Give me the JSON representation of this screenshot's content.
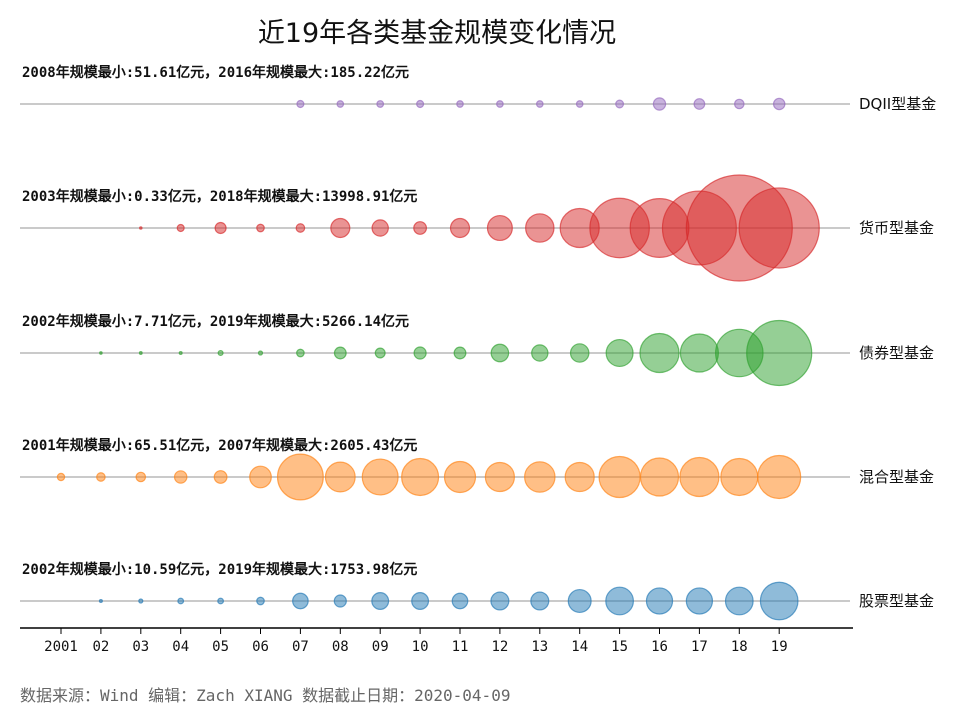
{
  "chart_data": {
    "type": "scatter",
    "title": "近19年各类基金规模变化情况",
    "x_tick_labels": [
      "2001",
      "02",
      "03",
      "04",
      "05",
      "06",
      "07",
      "08",
      "09",
      "10",
      "11",
      "12",
      "13",
      "14",
      "15",
      "16",
      "17",
      "18",
      "19"
    ],
    "x": [
      2001,
      2002,
      2003,
      2004,
      2005,
      2006,
      2007,
      2008,
      2009,
      2010,
      2011,
      2012,
      2013,
      2014,
      2015,
      2016,
      2017,
      2018,
      2019
    ],
    "size_unit": "亿元",
    "grid": false,
    "series": [
      {
        "name": "DQII型基金",
        "color": "#9467bd",
        "annotation": "2008年规模最小:51.61亿元，2016年规模最大:185.22亿元",
        "values": [
          null,
          null,
          null,
          null,
          null,
          null,
          60,
          51.61,
          55,
          60,
          52,
          53,
          52,
          52,
          75,
          185.22,
          140,
          110,
          160
        ]
      },
      {
        "name": "货币型基金",
        "color": "#d62728",
        "annotation": "2003年规模最小:0.33亿元，2018年规模最大:13998.91亿元",
        "values": [
          null,
          null,
          0.33,
          60,
          150,
          70,
          90,
          450,
          330,
          200,
          450,
          770,
          1000,
          1900,
          4400,
          4300,
          6800,
          13998.91,
          8000
        ]
      },
      {
        "name": "债券型基金",
        "color": "#2ca02c",
        "annotation": "2002年规模最小:7.71亿元，2019年规模最大:5266.14亿元",
        "values": [
          null,
          7.71,
          9,
          10,
          30,
          20,
          70,
          170,
          120,
          180,
          170,
          380,
          330,
          420,
          900,
          1900,
          1800,
          2800,
          5266.14
        ]
      },
      {
        "name": "混合型基金",
        "color": "#ff7f0e",
        "annotation": "2001年规模最小:65.51亿元，2007年规模最大:2605.43亿元",
        "values": [
          65.51,
          90,
          110,
          190,
          200,
          580,
          2605.43,
          1100,
          1600,
          1700,
          1200,
          1050,
          1150,
          1050,
          2100,
          1800,
          1900,
          1700,
          2300
        ]
      },
      {
        "name": "股票型基金",
        "color": "#1f77b4",
        "annotation": "2002年规模最小:10.59亿元，2019年规模最大:1753.98亿元",
        "values": [
          null,
          10.59,
          20,
          40,
          40,
          70,
          300,
          180,
          350,
          350,
          300,
          400,
          400,
          650,
          950,
          850,
          850,
          950,
          1753.98
        ]
      }
    ]
  },
  "footer": {
    "source": "数据来源：Wind 编辑：Zach XIANG 数据截止日期：2020-04-09"
  }
}
